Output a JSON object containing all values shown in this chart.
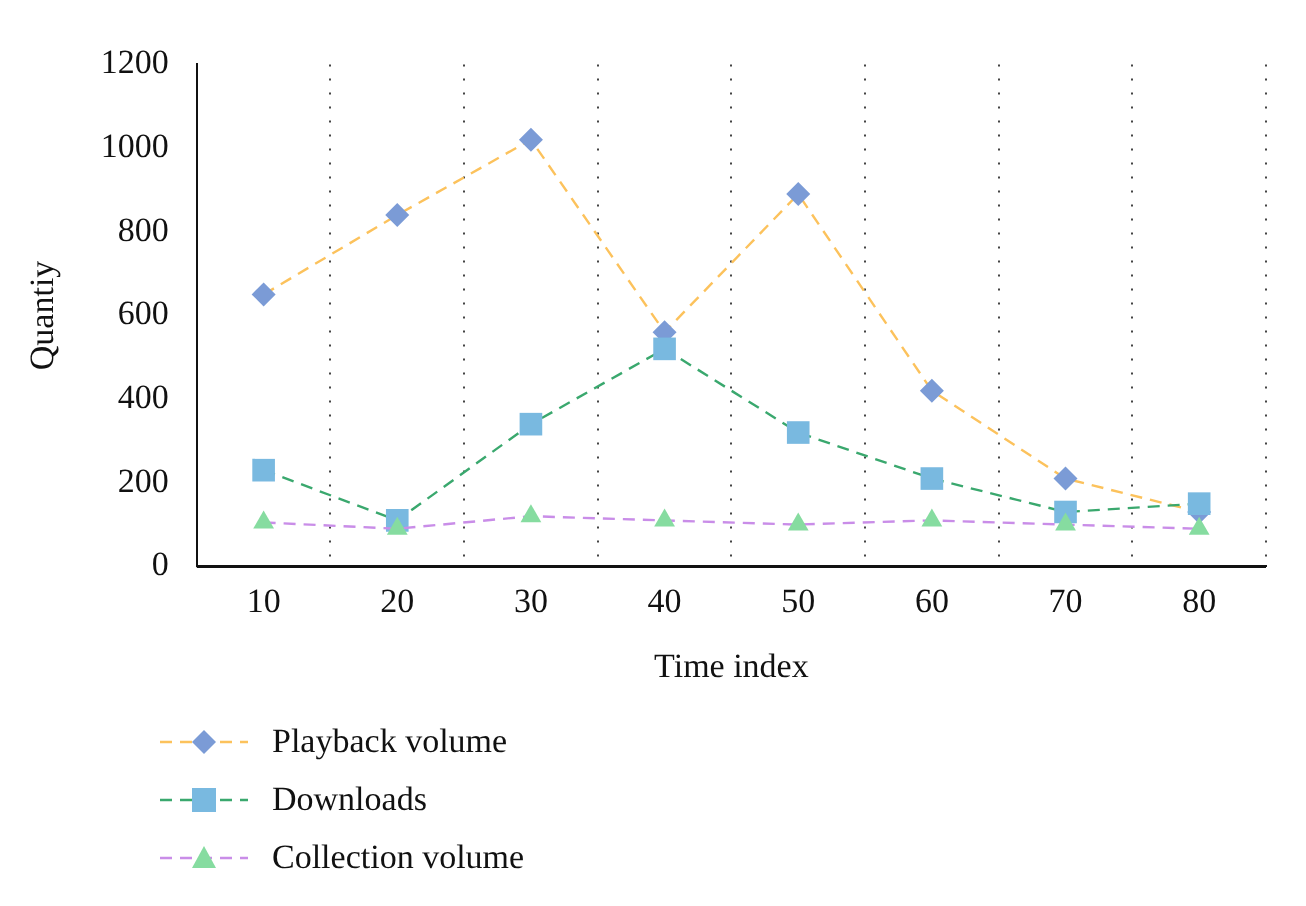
{
  "chart_data": {
    "type": "line",
    "xlabel": "Time index",
    "ylabel": "Quantiy",
    "categories": [
      "10",
      "20",
      "30",
      "40",
      "50",
      "60",
      "70",
      "80"
    ],
    "series": [
      {
        "name": "Playback volume",
        "color": "#fcc25c",
        "colors": [
          "#7b9bd6",
          "#7b9bd6",
          "#7b9bd6",
          "#7b9bd6",
          "#7b9bd6",
          "#7b9bd6",
          "#7b9bd6",
          "#7b9bd6"
        ],
        "marker": "diamond",
        "values": [
          650,
          840,
          1020,
          560,
          890,
          420,
          210,
          130
        ]
      },
      {
        "name": "Downloads",
        "color": "#3aa86e",
        "colors": [
          "#79b9e0",
          "#79b9e0",
          "#79b9e0",
          "#79b9e0",
          "#79b9e0",
          "#79b9e0",
          "#79b9e0",
          "#79b9e0"
        ],
        "marker": "square",
        "values": [
          230,
          110,
          340,
          520,
          320,
          210,
          130,
          150
        ]
      },
      {
        "name": "Collection volume",
        "color": "#c98de8",
        "colors": [
          "#86dca0",
          "#86dca0",
          "#86dca0",
          "#86dca0",
          "#86dca0",
          "#86dca0",
          "#86dca0",
          "#86dca0"
        ],
        "marker": "triangle",
        "values": [
          105,
          90,
          120,
          110,
          100,
          110,
          100,
          90
        ]
      }
    ],
    "ylim": [
      0,
      1200
    ],
    "yticks": [
      0,
      200,
      400,
      600,
      800,
      1000,
      1200
    ],
    "grid": "x",
    "legend": "bottom left",
    "line_style": "dashed"
  }
}
